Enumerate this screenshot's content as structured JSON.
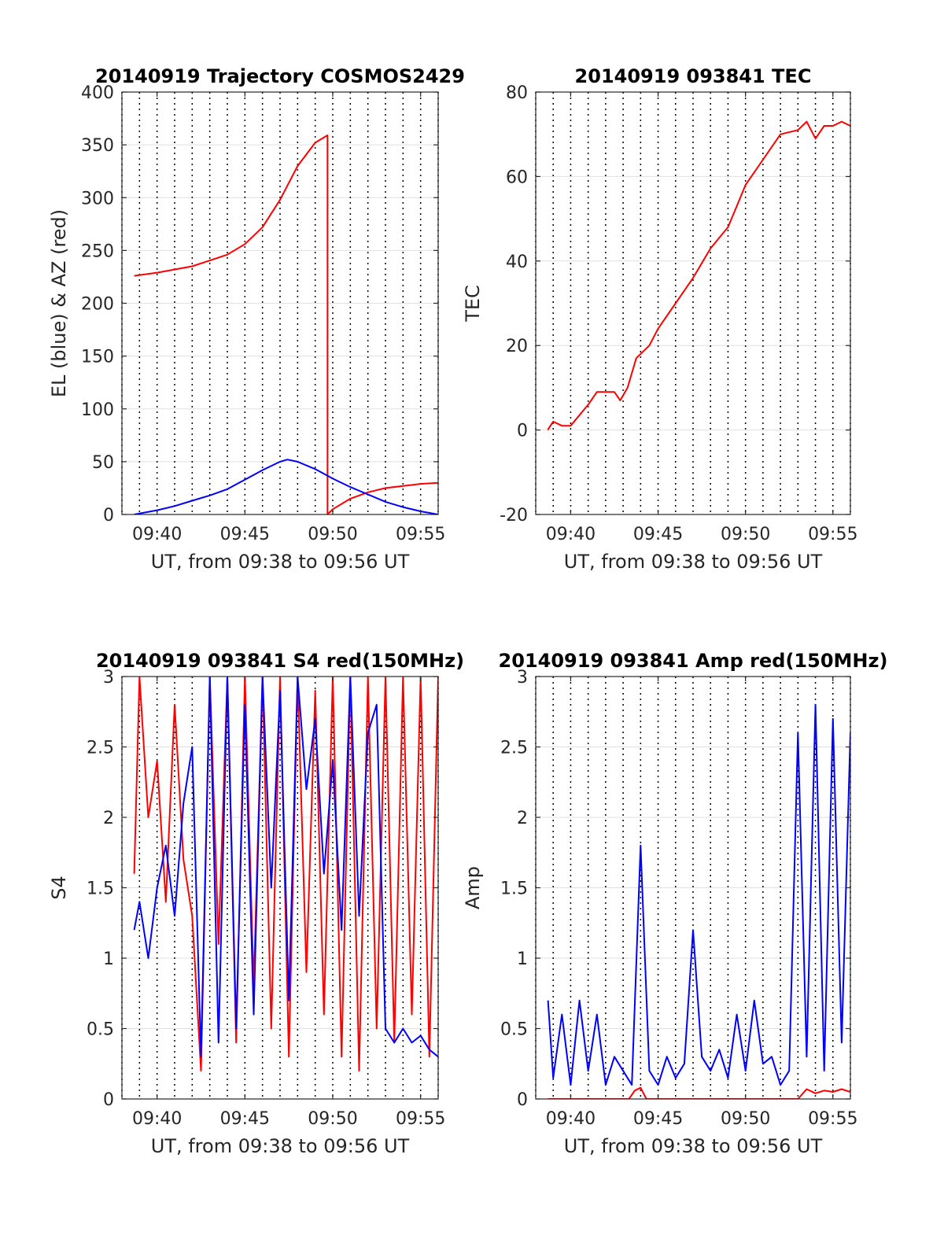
{
  "figure": {
    "colors": {
      "red": "#ff0000",
      "blue": "#0000ff",
      "axis": "#262626",
      "grid": "#e0e0e0",
      "vline": "#000000"
    }
  },
  "chart_data": [
    {
      "id": "trajectory",
      "type": "line",
      "title": "20140919 Trajectory COSMOS2429",
      "xlabel": "UT, from 09:38 to 09:56 UT",
      "ylabel": "EL (blue) & AZ (red)",
      "xlim": [
        "09:38",
        "09:56"
      ],
      "ylim": [
        0,
        400
      ],
      "yticks": [
        0,
        50,
        100,
        150,
        200,
        250,
        300,
        350,
        400
      ],
      "xtick_labels": [
        "09:40",
        "09:45",
        "09:50",
        "09:55"
      ],
      "grid": true,
      "series": [
        {
          "color": "red",
          "x": [
            "09:38:42",
            "09:40",
            "09:42",
            "09:44",
            "09:45",
            "09:46",
            "09:47",
            "09:48",
            "09:49",
            "09:49:42",
            "09:49:42",
            "09:50",
            "09:51",
            "09:52",
            "09:53",
            "09:54",
            "09:55",
            "09:56"
          ],
          "y": [
            226,
            229,
            235,
            246,
            256,
            272,
            298,
            330,
            352,
            359,
            0,
            5,
            15,
            21,
            25,
            27,
            29,
            30
          ]
        },
        {
          "color": "blue",
          "x": [
            "09:38:42",
            "09:40",
            "09:41",
            "09:42",
            "09:43",
            "09:44",
            "09:45",
            "09:46",
            "09:47",
            "09:47:25",
            "09:48",
            "09:49",
            "09:50",
            "09:51",
            "09:52",
            "09:53",
            "09:54",
            "09:55",
            "09:56"
          ],
          "y": [
            0,
            4,
            8,
            13,
            18,
            24,
            33,
            42,
            50,
            52,
            50,
            43,
            34,
            26,
            19,
            12,
            7,
            3,
            0
          ]
        }
      ]
    },
    {
      "id": "tec",
      "type": "line",
      "title": "20140919 093841 TEC",
      "xlabel": "UT, from 09:38 to 09:56 UT",
      "ylabel": "TEC",
      "xlim": [
        "09:38",
        "09:56"
      ],
      "ylim": [
        -20,
        80
      ],
      "yticks": [
        -20,
        0,
        20,
        40,
        60,
        80
      ],
      "xtick_labels": [
        "09:40",
        "09:45",
        "09:50",
        "09:55"
      ],
      "grid": true,
      "series": [
        {
          "color": "red",
          "x": [
            "09:38:41",
            "09:39:00",
            "09:39:30",
            "09:40:00",
            "09:41:00",
            "09:41:30",
            "09:42:00",
            "09:42:30",
            "09:42:50",
            "09:43:15",
            "09:43:45",
            "09:44:30",
            "09:45:00",
            "09:46:00",
            "09:47:00",
            "09:48:00",
            "09:49:00",
            "09:49:30",
            "09:50:00",
            "09:51:00",
            "09:52:00",
            "09:53:00",
            "09:53:30",
            "09:54:00",
            "09:54:30",
            "09:55:00",
            "09:55:30",
            "09:56:00"
          ],
          "y": [
            0,
            2,
            1,
            1,
            6,
            9,
            9,
            9,
            7,
            10,
            17,
            20,
            24,
            30,
            36,
            43,
            48,
            53,
            58,
            64,
            70,
            71,
            73,
            69,
            72,
            72,
            73,
            72
          ]
        }
      ]
    },
    {
      "id": "s4",
      "type": "line",
      "title": "20140919 093841 S4 red(150MHz)",
      "xlabel": "UT, from 09:38 to 09:56 UT",
      "ylabel": "S4",
      "xlim": [
        "09:38",
        "09:56"
      ],
      "ylim": [
        0,
        3
      ],
      "yticks": [
        0,
        0.5,
        1,
        1.5,
        2,
        2.5,
        3
      ],
      "ytick_labels": [
        "0",
        "0.5",
        "1",
        "1.5",
        "2",
        "2.5",
        "3"
      ],
      "xtick_labels": [
        "09:40",
        "09:45",
        "09:50",
        "09:55"
      ],
      "grid": true,
      "series": [
        {
          "color": "red",
          "x": [
            "09:38:42",
            "09:39:00",
            "09:39:30",
            "09:40:00",
            "09:40:30",
            "09:41:00",
            "09:41:30",
            "09:42:00",
            "09:42:30",
            "09:43:00",
            "09:43:30",
            "09:44:00",
            "09:44:30",
            "09:45:00",
            "09:45:30",
            "09:46:00",
            "09:46:30",
            "09:47:00",
            "09:47:30",
            "09:48:00",
            "09:48:30",
            "09:49:00",
            "09:49:30",
            "09:50:00",
            "09:50:30",
            "09:51:00",
            "09:51:30",
            "09:52:00",
            "09:52:30",
            "09:53:00",
            "09:53:30",
            "09:54:00",
            "09:54:30",
            "09:55:00",
            "09:55:30",
            "09:56:00"
          ],
          "y": [
            1.6,
            3.0,
            2.0,
            2.4,
            1.4,
            2.8,
            1.7,
            1.3,
            0.2,
            3.0,
            1.1,
            3.0,
            0.4,
            3.0,
            0.8,
            3.0,
            0.5,
            3.0,
            0.3,
            3.0,
            0.9,
            2.9,
            0.6,
            3.0,
            0.3,
            3.0,
            0.2,
            3.0,
            0.5,
            3.0,
            0.4,
            3.0,
            0.6,
            3.0,
            0.3,
            3.0
          ]
        },
        {
          "color": "blue",
          "x": [
            "09:38:42",
            "09:39:00",
            "09:39:30",
            "09:40:00",
            "09:40:30",
            "09:41:00",
            "09:41:30",
            "09:42:00",
            "09:42:30",
            "09:43:00",
            "09:43:30",
            "09:44:00",
            "09:44:30",
            "09:45:00",
            "09:45:30",
            "09:46:00",
            "09:46:30",
            "09:47:00",
            "09:47:30",
            "09:48:00",
            "09:48:30",
            "09:49:00",
            "09:49:30",
            "09:50:00",
            "09:50:30",
            "09:51:00",
            "09:51:30",
            "09:52:00",
            "09:52:30",
            "09:53:00",
            "09:53:30",
            "09:54:00",
            "09:54:30",
            "09:55:00",
            "09:55:30",
            "09:56:00"
          ],
          "y": [
            1.2,
            1.4,
            1.0,
            1.5,
            1.8,
            1.3,
            2.1,
            2.5,
            0.3,
            3.0,
            0.4,
            3.0,
            0.5,
            2.8,
            0.6,
            3.0,
            1.5,
            2.9,
            0.7,
            3.0,
            2.2,
            2.7,
            1.6,
            2.4,
            1.2,
            3.0,
            1.3,
            2.6,
            2.8,
            0.5,
            0.4,
            0.5,
            0.4,
            0.45,
            0.35,
            0.3
          ]
        }
      ]
    },
    {
      "id": "amp",
      "type": "line",
      "title": "20140919 093841 Amp red(150MHz)",
      "xlabel": "UT, from 09:38 to 09:56 UT",
      "ylabel": "Amp",
      "xlim": [
        "09:38",
        "09:56"
      ],
      "ylim": [
        0,
        3
      ],
      "yticks": [
        0,
        0.5,
        1,
        1.5,
        2,
        2.5,
        3
      ],
      "ytick_labels": [
        "0",
        "0.5",
        "1",
        "1.5",
        "2",
        "2.5",
        "3"
      ],
      "xtick_labels": [
        "09:40",
        "09:45",
        "09:50",
        "09:55"
      ],
      "grid": true,
      "series": [
        {
          "color": "red",
          "x": [
            "09:38:42",
            "09:43:20",
            "09:43:40",
            "09:44:00",
            "09:44:20",
            "09:53:00",
            "09:53:30",
            "09:54:00",
            "09:54:30",
            "09:55:00",
            "09:55:30",
            "09:56:00"
          ],
          "y": [
            0,
            0,
            0.06,
            0.08,
            0,
            0,
            0.07,
            0.04,
            0.06,
            0.05,
            0.07,
            0.05
          ]
        },
        {
          "color": "blue",
          "x": [
            "09:38:42",
            "09:39:00",
            "09:39:30",
            "09:40:00",
            "09:40:30",
            "09:41:00",
            "09:41:30",
            "09:42:00",
            "09:42:30",
            "09:43:00",
            "09:43:30",
            "09:44:00",
            "09:44:30",
            "09:45:00",
            "09:45:30",
            "09:46:00",
            "09:46:30",
            "09:47:00",
            "09:47:30",
            "09:48:00",
            "09:48:30",
            "09:49:00",
            "09:49:30",
            "09:50:00",
            "09:50:30",
            "09:51:00",
            "09:51:30",
            "09:52:00",
            "09:52:30",
            "09:53:00",
            "09:53:30",
            "09:54:00",
            "09:54:30",
            "09:55:00",
            "09:55:30",
            "09:56:00"
          ],
          "y": [
            0.7,
            0.15,
            0.6,
            0.1,
            0.7,
            0.2,
            0.6,
            0.1,
            0.3,
            0.2,
            0.1,
            1.8,
            0.2,
            0.1,
            0.3,
            0.15,
            0.25,
            1.2,
            0.3,
            0.2,
            0.35,
            0.15,
            0.6,
            0.2,
            0.7,
            0.25,
            0.3,
            0.1,
            0.2,
            2.6,
            0.3,
            2.8,
            0.2,
            2.7,
            0.4,
            2.6
          ]
        }
      ]
    }
  ]
}
